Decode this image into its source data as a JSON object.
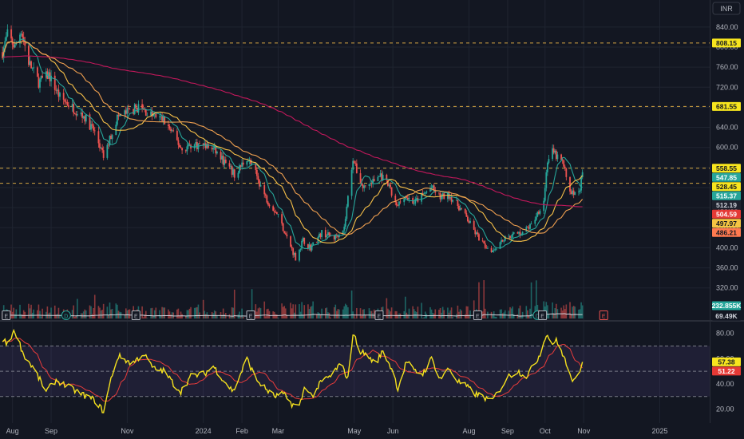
{
  "header": {
    "currency": "INR"
  },
  "colors": {
    "background": "#131722",
    "grid": "#1f2430",
    "up": "#26a69a",
    "down": "#ef5350",
    "rsi": "#f5e11e",
    "rsi_ma": "#e83b3b",
    "rsi_band": "#7e57c2",
    "ma_fast": "#26a69a",
    "ma_mid": "#f7c048",
    "ma_slow": "#f0a050",
    "ma_200": "#c2185b",
    "volume_ma": "#d1d4dc",
    "level": "#f7c048"
  },
  "chart_data": [
    {
      "type": "candlestick",
      "title": "",
      "y_axis": {
        "ylim": [
          345,
          862
        ],
        "ticks": [
          840,
          800,
          760,
          720,
          680,
          640,
          600,
          560,
          520,
          480,
          440,
          400,
          360,
          320
        ]
      },
      "x_axis": {
        "range": [
          "2023-07-22",
          "2025-02-10"
        ],
        "ticks": [
          {
            "label": "Aug",
            "date": "2023-08-01"
          },
          {
            "label": "Sep",
            "date": "2023-09-01"
          },
          {
            "label": "Nov",
            "date": "2023-11-01"
          },
          {
            "label": "2024",
            "date": "2024-01-01"
          },
          {
            "label": "Feb",
            "date": "2024-02-01"
          },
          {
            "label": "Mar",
            "date": "2024-03-01"
          },
          {
            "label": "May",
            "date": "2024-05-01"
          },
          {
            "label": "Jun",
            "date": "2024-06-01"
          },
          {
            "label": "Aug",
            "date": "2024-08-01"
          },
          {
            "label": "Sep",
            "date": "2024-09-01"
          },
          {
            "label": "Oct",
            "date": "2024-10-01"
          },
          {
            "label": "Nov",
            "date": "2024-11-01"
          },
          {
            "label": "2025",
            "date": "2025-01-01"
          }
        ]
      },
      "price_anchors": [
        [
          "2023-07-24",
          790
        ],
        [
          "2023-07-28",
          825
        ],
        [
          "2023-08-03",
          800
        ],
        [
          "2023-08-08",
          835
        ],
        [
          "2023-08-14",
          770
        ],
        [
          "2023-08-22",
          730
        ],
        [
          "2023-08-30",
          745
        ],
        [
          "2023-09-08",
          700
        ],
        [
          "2023-09-18",
          680
        ],
        [
          "2023-09-28",
          660
        ],
        [
          "2023-10-06",
          630
        ],
        [
          "2023-10-13",
          580
        ],
        [
          "2023-10-24",
          660
        ],
        [
          "2023-11-01",
          670
        ],
        [
          "2023-11-10",
          680
        ],
        [
          "2023-11-20",
          665
        ],
        [
          "2023-11-30",
          655
        ],
        [
          "2023-12-08",
          625
        ],
        [
          "2023-12-15",
          595
        ],
        [
          "2023-12-22",
          605
        ],
        [
          "2024-01-01",
          605
        ],
        [
          "2024-01-10",
          595
        ],
        [
          "2024-01-18",
          570
        ],
        [
          "2024-01-26",
          545
        ],
        [
          "2024-02-05",
          580
        ],
        [
          "2024-02-12",
          548
        ],
        [
          "2024-02-20",
          500
        ],
        [
          "2024-03-01",
          465
        ],
        [
          "2024-03-08",
          420
        ],
        [
          "2024-03-15",
          380
        ],
        [
          "2024-03-21",
          415
        ],
        [
          "2024-03-27",
          400
        ],
        [
          "2024-04-05",
          430
        ],
        [
          "2024-04-15",
          420
        ],
        [
          "2024-04-23",
          440
        ],
        [
          "2024-04-30",
          580
        ],
        [
          "2024-05-02",
          560
        ],
        [
          "2024-05-08",
          520
        ],
        [
          "2024-05-15",
          530
        ],
        [
          "2024-05-22",
          545
        ],
        [
          "2024-05-29",
          520
        ],
        [
          "2024-06-04",
          480
        ],
        [
          "2024-06-10",
          505
        ],
        [
          "2024-06-18",
          490
        ],
        [
          "2024-06-25",
          505
        ],
        [
          "2024-07-02",
          520
        ],
        [
          "2024-07-09",
          500
        ],
        [
          "2024-07-16",
          505
        ],
        [
          "2024-07-23",
          485
        ],
        [
          "2024-07-30",
          460
        ],
        [
          "2024-08-06",
          430
        ],
        [
          "2024-08-13",
          405
        ],
        [
          "2024-08-20",
          395
        ],
        [
          "2024-08-27",
          415
        ],
        [
          "2024-09-04",
          425
        ],
        [
          "2024-09-12",
          430
        ],
        [
          "2024-09-20",
          445
        ],
        [
          "2024-09-25",
          470
        ],
        [
          "2024-09-30",
          495
        ],
        [
          "2024-10-03",
          575
        ],
        [
          "2024-10-07",
          590
        ],
        [
          "2024-10-11",
          580
        ],
        [
          "2024-10-15",
          570
        ],
        [
          "2024-10-21",
          515
        ],
        [
          "2024-10-25",
          505
        ],
        [
          "2024-10-29",
          520
        ],
        [
          "2024-10-31",
          548
        ]
      ],
      "moving_averages": [
        {
          "key": "ma_fast",
          "window": 10
        },
        {
          "key": "ma_mid",
          "window": 25
        },
        {
          "key": "ma_slow",
          "window": 45
        },
        {
          "key": "ma_200",
          "window": 200
        }
      ],
      "horizontal_levels": [
        808.15,
        681.55,
        558.55,
        528.45
      ],
      "price_labels": [
        {
          "text": "808.15",
          "value": 808.15,
          "bg": "#f7e51e",
          "fg": "#131722"
        },
        {
          "text": "681.55",
          "value": 681.55,
          "bg": "#f7e51e",
          "fg": "#131722"
        },
        {
          "text": "558.55",
          "value": 558.55,
          "bg": "#f7e51e",
          "fg": "#131722"
        },
        {
          "text": "547.85",
          "value": 547.85,
          "bg": "#26a69a",
          "fg": "#ffffff"
        },
        {
          "text": "528.45",
          "value": 528.45,
          "bg": "#f7e51e",
          "fg": "#131722"
        },
        {
          "text": "515.37",
          "value": 515.37,
          "bg": "#26a69a",
          "fg": "#ffffff"
        },
        {
          "text": "512.19",
          "value": 512.19,
          "bg": "#1e222d",
          "fg": "#d1d4dc"
        },
        {
          "text": "504.59",
          "value": 504.59,
          "bg": "#e53935",
          "fg": "#ffffff"
        },
        {
          "text": "497.97",
          "value": 497.97,
          "bg": "#f5c542",
          "fg": "#131722"
        },
        {
          "text": "486.21",
          "value": 486.21,
          "bg": "#ff7a50",
          "fg": "#131722"
        }
      ],
      "volume_labels": [
        {
          "text": "232.855K",
          "bg": "#26a69a",
          "fg": "#ffffff"
        },
        {
          "text": "69.49K",
          "bg": "#131722",
          "fg": "#d1d4dc"
        }
      ],
      "event_markers": [
        {
          "text": "E",
          "date": "2023-07-27"
        },
        {
          "text": "D",
          "date": "2023-09-13"
        },
        {
          "text": "E",
          "date": "2023-11-08"
        },
        {
          "text": "E",
          "date": "2024-02-08"
        },
        {
          "text": "E",
          "date": "2024-05-21"
        },
        {
          "text": "E",
          "date": "2024-08-08"
        },
        {
          "text": "D",
          "date": "2024-09-25"
        },
        {
          "text": "E",
          "date": "2024-09-29"
        },
        {
          "text": "E",
          "date": "2024-11-17",
          "upcoming": true
        }
      ]
    },
    {
      "type": "line",
      "title": "",
      "y_axis": {
        "ylim": [
          14,
          88
        ],
        "ticks": [
          80,
          60,
          40,
          20
        ]
      },
      "bands": {
        "upper": 70,
        "middle": 50,
        "lower": 30
      },
      "rsi_anchors": [
        [
          "2023-07-22",
          78
        ],
        [
          "2023-07-27",
          72
        ],
        [
          "2023-08-03",
          82
        ],
        [
          "2023-08-10",
          63
        ],
        [
          "2023-08-18",
          52
        ],
        [
          "2023-08-28",
          34
        ],
        [
          "2023-09-05",
          43
        ],
        [
          "2023-09-14",
          38
        ],
        [
          "2023-09-25",
          32
        ],
        [
          "2023-10-06",
          27
        ],
        [
          "2023-10-13",
          18
        ],
        [
          "2023-10-20",
          48
        ],
        [
          "2023-10-25",
          62
        ],
        [
          "2023-11-05",
          56
        ],
        [
          "2023-11-14",
          64
        ],
        [
          "2023-11-22",
          52
        ],
        [
          "2023-12-01",
          50
        ],
        [
          "2023-12-08",
          40
        ],
        [
          "2023-12-14",
          34
        ],
        [
          "2023-12-22",
          46
        ],
        [
          "2024-01-02",
          48
        ],
        [
          "2024-01-09",
          54
        ],
        [
          "2024-01-18",
          42
        ],
        [
          "2024-01-25",
          34
        ],
        [
          "2024-02-05",
          60
        ],
        [
          "2024-02-12",
          44
        ],
        [
          "2024-02-20",
          36
        ],
        [
          "2024-02-27",
          30
        ],
        [
          "2024-03-05",
          32
        ],
        [
          "2024-03-12",
          24
        ],
        [
          "2024-03-18",
          22
        ],
        [
          "2024-03-23",
          40
        ],
        [
          "2024-03-28",
          30
        ],
        [
          "2024-04-05",
          42
        ],
        [
          "2024-04-12",
          46
        ],
        [
          "2024-04-20",
          56
        ],
        [
          "2024-04-26",
          44
        ],
        [
          "2024-04-30",
          80
        ],
        [
          "2024-05-06",
          66
        ],
        [
          "2024-05-12",
          62
        ],
        [
          "2024-05-18",
          56
        ],
        [
          "2024-05-24",
          66
        ],
        [
          "2024-06-01",
          50
        ],
        [
          "2024-06-05",
          36
        ],
        [
          "2024-06-12",
          58
        ],
        [
          "2024-06-18",
          50
        ],
        [
          "2024-06-25",
          48
        ],
        [
          "2024-07-02",
          60
        ],
        [
          "2024-07-09",
          44
        ],
        [
          "2024-07-16",
          52
        ],
        [
          "2024-07-23",
          42
        ],
        [
          "2024-07-30",
          38
        ],
        [
          "2024-08-06",
          32
        ],
        [
          "2024-08-12",
          30
        ],
        [
          "2024-08-19",
          26
        ],
        [
          "2024-08-26",
          36
        ],
        [
          "2024-09-02",
          46
        ],
        [
          "2024-09-09",
          50
        ],
        [
          "2024-09-16",
          46
        ],
        [
          "2024-09-23",
          56
        ],
        [
          "2024-09-28",
          66
        ],
        [
          "2024-10-02",
          80
        ],
        [
          "2024-10-06",
          72
        ],
        [
          "2024-10-10",
          74
        ],
        [
          "2024-10-16",
          62
        ],
        [
          "2024-10-21",
          46
        ],
        [
          "2024-10-25",
          42
        ],
        [
          "2024-10-29",
          48
        ],
        [
          "2024-10-31",
          57.38
        ]
      ],
      "ma_window": 14,
      "value_labels": [
        {
          "text": "57.38",
          "value": 57.38,
          "bg": "#f7e51e",
          "fg": "#131722"
        },
        {
          "text": "51.22",
          "value": 51.22,
          "bg": "#e53935",
          "fg": "#ffffff"
        }
      ]
    }
  ]
}
